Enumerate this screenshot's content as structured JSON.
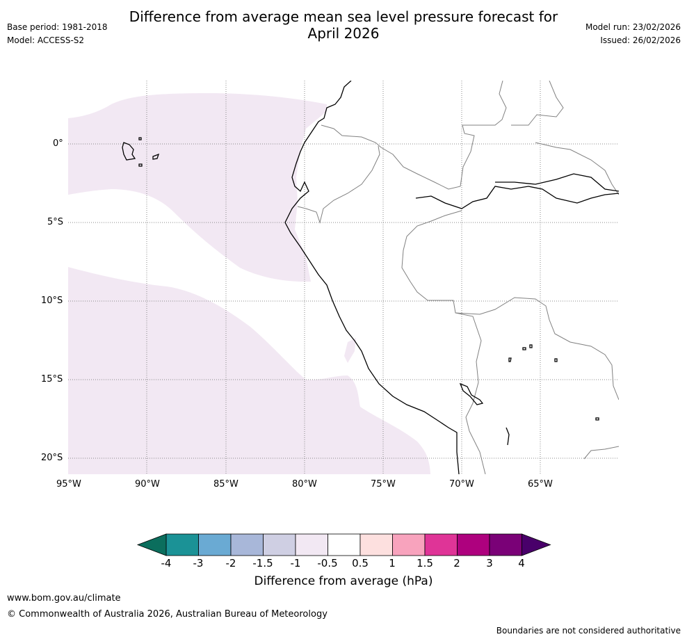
{
  "header": {
    "title_line1": "Difference from average mean sea level pressure forecast for",
    "title_line2": "April 2026",
    "base_period": "Base period: 1981-2018",
    "model": "Model: ACCESS-S2",
    "model_run": "Model run: 23/02/2026",
    "issued": "Issued: 26/02/2026"
  },
  "map": {
    "lat_labels": [
      "0°",
      "5°S",
      "10°S",
      "15°S",
      "20°S"
    ],
    "lon_labels": [
      "95°W",
      "90°W",
      "85°W",
      "80°W",
      "75°W",
      "70°W",
      "65°W"
    ],
    "anomaly_fill_color": "#f2e8f3",
    "coast_color": "#000000",
    "border_color": "#808080",
    "grid_color": "#888888"
  },
  "colorbar": {
    "ticks": [
      "-4",
      "-3",
      "-2",
      "-1.5",
      "-1",
      "-0.5",
      "0.5",
      "1",
      "1.5",
      "2",
      "3",
      "4"
    ],
    "under_color": "#0b6e5d",
    "colors": [
      "#1b9296",
      "#6aaad3",
      "#a8b7d9",
      "#cfcfe3",
      "#f2e8f3",
      "#ffffff",
      "#fde0df",
      "#f8a3bd",
      "#df3497",
      "#ae017e",
      "#7a0177"
    ],
    "over_color": "#49006a",
    "label": "Difference from average (hPa)"
  },
  "footer": {
    "website": "www.bom.gov.au/climate",
    "copyright": "© Commonwealth of Australia 2026, Australian Bureau of Meteorology",
    "disclaimer": "Boundaries are not considered authoritative"
  }
}
